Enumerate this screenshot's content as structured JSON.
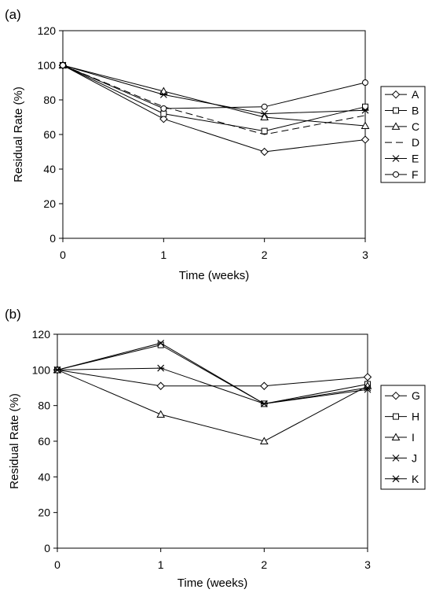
{
  "chart_data": [
    {
      "panel_label": "(a)",
      "type": "line",
      "xlabel": "Time (weeks)",
      "ylabel": "Residual Rate (%)",
      "xlim": [
        0,
        3
      ],
      "ylim": [
        0,
        120
      ],
      "x_ticks": [
        0,
        1,
        2,
        3
      ],
      "y_ticks": [
        0,
        20,
        40,
        60,
        80,
        100,
        120
      ],
      "grid": false,
      "legend_position": "right",
      "x": [
        0,
        1,
        2,
        3
      ],
      "series": [
        {
          "name": "A",
          "marker": "diamond",
          "dash": "solid",
          "values": [
            100,
            69,
            50,
            57
          ]
        },
        {
          "name": "B",
          "marker": "square",
          "dash": "solid",
          "values": [
            100,
            72,
            62,
            76
          ]
        },
        {
          "name": "C",
          "marker": "triangle",
          "dash": "solid",
          "values": [
            100,
            85,
            70,
            65
          ]
        },
        {
          "name": "D",
          "marker": "none",
          "dash": "dashed",
          "values": [
            100,
            76,
            60,
            71
          ]
        },
        {
          "name": "E",
          "marker": "asterisk",
          "dash": "solid",
          "values": [
            100,
            83,
            72,
            74
          ]
        },
        {
          "name": "F",
          "marker": "circle",
          "dash": "solid",
          "values": [
            100,
            75,
            76,
            90
          ]
        }
      ]
    },
    {
      "panel_label": "(b)",
      "type": "line",
      "xlabel": "Time (weeks)",
      "ylabel": "Residual Rate (%)",
      "xlim": [
        0,
        3
      ],
      "ylim": [
        0,
        120
      ],
      "x_ticks": [
        0,
        1,
        2,
        3
      ],
      "y_ticks": [
        0,
        20,
        40,
        60,
        80,
        100,
        120
      ],
      "grid": false,
      "legend_position": "right",
      "x": [
        0,
        1,
        2,
        3
      ],
      "series": [
        {
          "name": "G",
          "marker": "diamond",
          "dash": "solid",
          "values": [
            100,
            91,
            91,
            96
          ]
        },
        {
          "name": "H",
          "marker": "square",
          "dash": "solid",
          "values": [
            100,
            114,
            81,
            92
          ]
        },
        {
          "name": "I",
          "marker": "triangle",
          "dash": "solid",
          "values": [
            100,
            75,
            60,
            91
          ]
        },
        {
          "name": "J",
          "marker": "cross",
          "dash": "solid",
          "values": [
            100,
            115,
            81,
            89
          ]
        },
        {
          "name": "K",
          "marker": "asterisk",
          "dash": "solid",
          "values": [
            100,
            101,
            81,
            90
          ]
        }
      ]
    }
  ]
}
